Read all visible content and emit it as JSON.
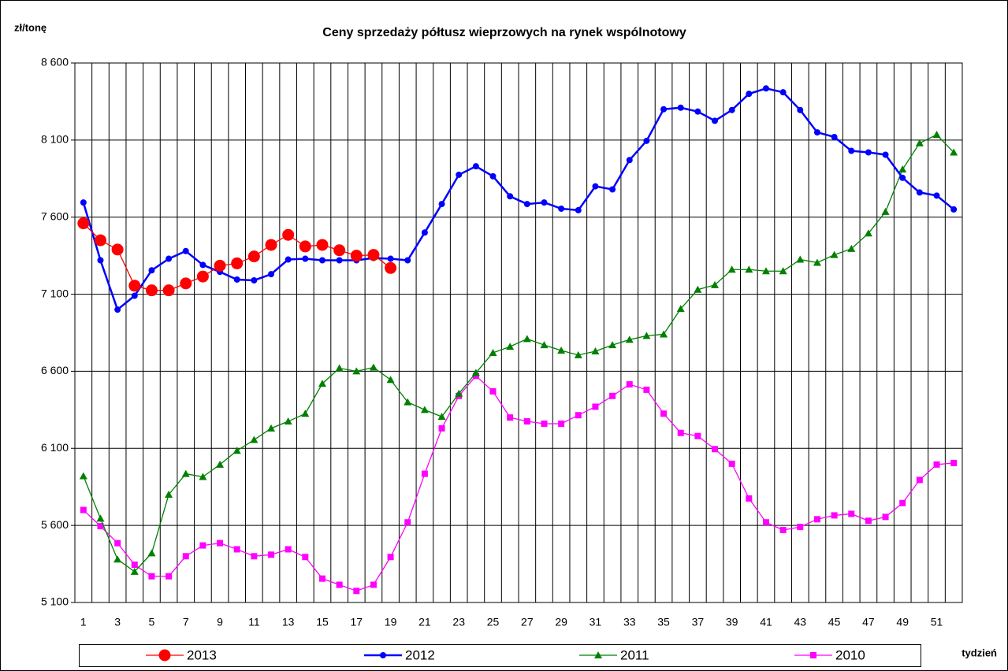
{
  "chart_data": {
    "type": "line",
    "title": "Ceny sprzedaży półtusz wieprzowych na rynek wspólnotowy",
    "y_label": "zł/tonę",
    "x_label": "tydzień",
    "categories": [
      1,
      null,
      3,
      null,
      5,
      null,
      7,
      null,
      9,
      null,
      11,
      null,
      13,
      null,
      15,
      null,
      17,
      null,
      19,
      null,
      21,
      null,
      23,
      null,
      25,
      null,
      27,
      null,
      29,
      null,
      31,
      null,
      33,
      null,
      35,
      null,
      37,
      null,
      39,
      null,
      41,
      null,
      43,
      null,
      45,
      null,
      47,
      null,
      49,
      null,
      51,
      null
    ],
    "ylim": [
      5100,
      8600
    ],
    "yticks": [
      {
        "value": 5100,
        "label": "5 100"
      },
      {
        "value": 5600,
        "label": "5 600"
      },
      {
        "value": 6100,
        "label": "6 100"
      },
      {
        "value": 6600,
        "label": "6 600"
      },
      {
        "value": 7100,
        "label": "7 100"
      },
      {
        "value": 7600,
        "label": "7 600"
      },
      {
        "value": 8100,
        "label": "8 100"
      },
      {
        "value": 8600,
        "label": "8 600"
      }
    ],
    "grid": true,
    "series": [
      {
        "name": "2013",
        "color": "#ff0000",
        "marker": "big-circle",
        "values": [
          7560,
          7450,
          7390,
          7155,
          7125,
          7125,
          7170,
          7215,
          7285,
          7300,
          7345,
          7420,
          7485,
          7410,
          7420,
          7385,
          7350,
          7355,
          7270,
          null,
          null,
          null,
          null,
          null,
          null,
          null,
          null,
          null,
          null,
          null,
          null,
          null,
          null,
          null,
          null,
          null,
          null,
          null,
          null,
          null,
          null,
          null,
          null,
          null,
          null,
          null,
          null,
          null,
          null,
          null,
          null,
          null
        ]
      },
      {
        "name": "2012",
        "color": "#0000ff",
        "marker": "circle",
        "values": [
          7695,
          7320,
          7000,
          7090,
          7255,
          7330,
          7380,
          7290,
          7245,
          7195,
          7190,
          7230,
          7325,
          7330,
          7320,
          7320,
          7320,
          7335,
          7330,
          7320,
          7500,
          7685,
          7875,
          7930,
          7865,
          7735,
          7685,
          7695,
          7655,
          7645,
          7800,
          7780,
          7970,
          8095,
          8300,
          8310,
          8285,
          8225,
          8295,
          8400,
          8435,
          8410,
          8295,
          8150,
          8120,
          8030,
          8020,
          8005,
          7855,
          7760,
          7740,
          7650
        ]
      },
      {
        "name": "2011",
        "color": "#008000",
        "marker": "triangle",
        "values": [
          5920,
          5645,
          5380,
          5300,
          5420,
          5800,
          5935,
          5915,
          5995,
          6085,
          6155,
          6230,
          6275,
          6325,
          6520,
          6620,
          6600,
          6625,
          6545,
          6400,
          6350,
          6305,
          6455,
          6590,
          6720,
          6760,
          6810,
          6770,
          6735,
          6705,
          6730,
          6770,
          6805,
          6830,
          6840,
          7005,
          7130,
          7160,
          7260,
          7260,
          7250,
          7250,
          7325,
          7305,
          7355,
          7395,
          7495,
          7635,
          7910,
          8080,
          8135,
          8020
        ]
      },
      {
        "name": "2010",
        "color": "#ff00ff",
        "marker": "square",
        "values": [
          5700,
          5595,
          5485,
          5345,
          5270,
          5270,
          5400,
          5470,
          5485,
          5445,
          5400,
          5410,
          5445,
          5395,
          5255,
          5215,
          5175,
          5215,
          5395,
          5620,
          5935,
          6230,
          6440,
          6570,
          6470,
          6300,
          6275,
          6260,
          6260,
          6315,
          6370,
          6440,
          6515,
          6480,
          6325,
          6200,
          6180,
          6095,
          6000,
          5775,
          5620,
          5570,
          5590,
          5640,
          5665,
          5675,
          5630,
          5655,
          5745,
          5895,
          5995,
          6005
        ]
      }
    ]
  }
}
